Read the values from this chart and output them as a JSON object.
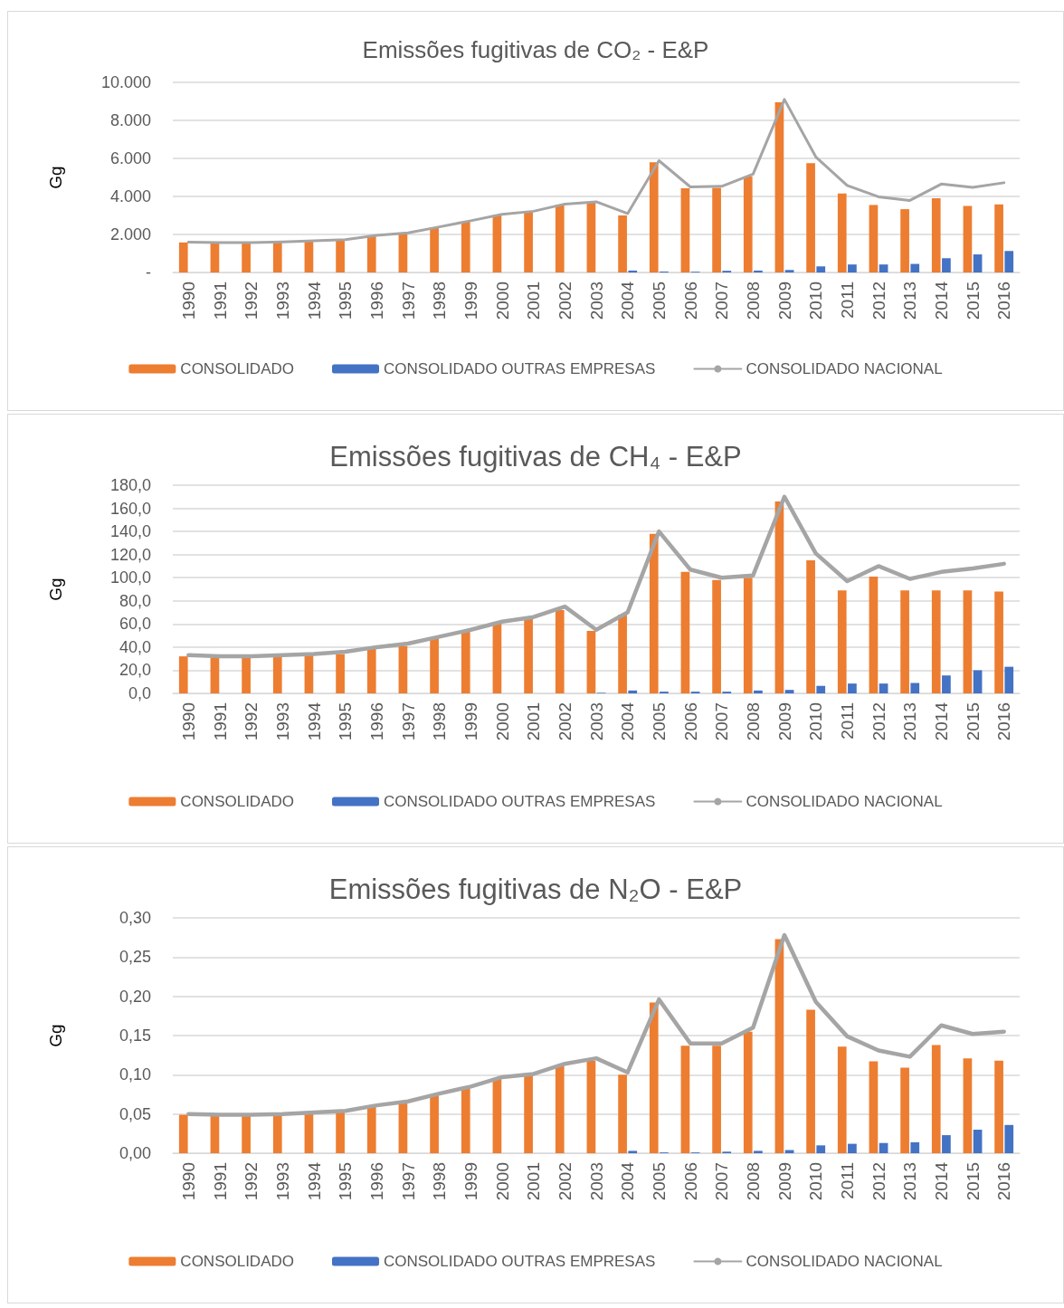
{
  "chart_data": [
    {
      "type": "bar",
      "title": "Emissões fugitivas de CO₂ - E&P",
      "ylabel": "Gg",
      "categories": [
        "1990",
        "1991",
        "1992",
        "1993",
        "1994",
        "1995",
        "1996",
        "1997",
        "1998",
        "1999",
        "2000",
        "2001",
        "2002",
        "2003",
        "2004",
        "2005",
        "2006",
        "2007",
        "2008",
        "2009",
        "2010",
        "2011",
        "2012",
        "2013",
        "2014",
        "2015",
        "2016"
      ],
      "series": [
        {
          "name": "CONSOLIDADO",
          "color": "#ed7d31",
          "values": [
            1580,
            1540,
            1540,
            1580,
            1640,
            1700,
            1920,
            2060,
            2380,
            2680,
            3020,
            3180,
            3560,
            3680,
            3000,
            5800,
            4430,
            4450,
            5050,
            8950,
            5750,
            4150,
            3550,
            3330,
            3900,
            3500,
            3580
          ]
        },
        {
          "name": "CONSOLIDADO OUTRAS EMPRESAS",
          "color": "#4472c4",
          "values": [
            0,
            0,
            0,
            0,
            0,
            0,
            0,
            0,
            0,
            0,
            0,
            0,
            0,
            0,
            100,
            50,
            40,
            90,
            100,
            130,
            320,
            420,
            420,
            450,
            750,
            950,
            1130
          ]
        },
        {
          "name": "CONSOLIDADO NACIONAL",
          "color": "#a5a5a5",
          "type": "line",
          "values": [
            1600,
            1570,
            1570,
            1610,
            1670,
            1730,
            1950,
            2080,
            2400,
            2720,
            3060,
            3220,
            3600,
            3720,
            3100,
            5880,
            4500,
            4530,
            5170,
            9100,
            6080,
            4580,
            3980,
            3790,
            4650,
            4480,
            4720
          ]
        }
      ],
      "ylim": [
        0,
        10000
      ],
      "yticks": [
        {
          "value": 0,
          "label": "-"
        },
        {
          "value": 2000,
          "label": "2.000"
        },
        {
          "value": 4000,
          "label": "4.000"
        },
        {
          "value": 6000,
          "label": "6.000"
        },
        {
          "value": 8000,
          "label": "8.000"
        },
        {
          "value": 10000,
          "label": "10.000"
        }
      ],
      "grid": "y",
      "legend": "bottom",
      "marker": "none",
      "line_style": "solid"
    },
    {
      "type": "bar",
      "title": "Emissões fugitivas de CH₄ - E&P",
      "ylabel": "Gg",
      "categories": [
        "1990",
        "1991",
        "1992",
        "1993",
        "1994",
        "1995",
        "1996",
        "1997",
        "1998",
        "1999",
        "2000",
        "2001",
        "2002",
        "2003",
        "2004",
        "2005",
        "2006",
        "2007",
        "2008",
        "2009",
        "2010",
        "2011",
        "2012",
        "2013",
        "2014",
        "2015",
        "2016"
      ],
      "series": [
        {
          "name": "CONSOLIDADO",
          "color": "#ed7d31",
          "values": [
            32,
            31,
            31,
            32,
            33,
            34,
            39,
            41,
            48,
            54,
            61,
            65,
            72,
            54,
            68,
            138,
            105,
            98,
            100,
            166,
            115,
            89,
            101,
            89,
            89,
            89,
            88
          ]
        },
        {
          "name": "CONSOLIDADO OUTRAS EMPRESAS",
          "color": "#4472c4",
          "values": [
            0,
            0,
            0,
            0,
            0,
            0,
            0,
            0,
            0,
            0,
            0,
            0,
            0,
            0.5,
            2.5,
            1.5,
            1.5,
            1.5,
            2.5,
            3,
            6.5,
            8.5,
            8.5,
            9,
            15.5,
            20,
            23
          ]
        },
        {
          "name": "CONSOLIDADO NACIONAL",
          "color": "#a5a5a5",
          "type": "line",
          "values": [
            33,
            32,
            32,
            33,
            34,
            36,
            40,
            43,
            49,
            55,
            62,
            66,
            75,
            55,
            70,
            140,
            107,
            100,
            102,
            170,
            121,
            97,
            110,
            99,
            105,
            108,
            112
          ]
        }
      ],
      "ylim": [
        0,
        180
      ],
      "yticks": [
        {
          "value": 0,
          "label": "0,0"
        },
        {
          "value": 20,
          "label": "20,0"
        },
        {
          "value": 40,
          "label": "40,0"
        },
        {
          "value": 60,
          "label": "60,0"
        },
        {
          "value": 80,
          "label": "80,0"
        },
        {
          "value": 100,
          "label": "100,0"
        },
        {
          "value": 120,
          "label": "120,0"
        },
        {
          "value": 140,
          "label": "140,0"
        },
        {
          "value": 160,
          "label": "160,0"
        },
        {
          "value": 180,
          "label": "180,0"
        }
      ],
      "grid": "y",
      "legend": "bottom",
      "marker": "none",
      "line_style": "solid"
    },
    {
      "type": "bar",
      "title": "Emissões fugitivas de N₂O - E&P",
      "ylabel": "Gg",
      "categories": [
        "1990",
        "1991",
        "1992",
        "1993",
        "1994",
        "1995",
        "1996",
        "1997",
        "1998",
        "1999",
        "2000",
        "2001",
        "2002",
        "2003",
        "2004",
        "2005",
        "2006",
        "2007",
        "2008",
        "2009",
        "2010",
        "2011",
        "2012",
        "2013",
        "2014",
        "2015",
        "2016"
      ],
      "series": [
        {
          "name": "CONSOLIDADO",
          "color": "#ed7d31",
          "values": [
            0.049,
            0.048,
            0.048,
            0.049,
            0.051,
            0.053,
            0.06,
            0.065,
            0.075,
            0.083,
            0.096,
            0.1,
            0.112,
            0.118,
            0.1,
            0.192,
            0.137,
            0.137,
            0.155,
            0.273,
            0.183,
            0.136,
            0.117,
            0.109,
            0.138,
            0.121,
            0.118
          ]
        },
        {
          "name": "CONSOLIDADO OUTRAS EMPRESAS",
          "color": "#4472c4",
          "values": [
            0,
            0,
            0,
            0,
            0,
            0,
            0,
            0,
            0,
            0,
            0,
            0,
            0,
            0,
            0.003,
            0.001,
            0.001,
            0.002,
            0.003,
            0.004,
            0.01,
            0.012,
            0.013,
            0.014,
            0.023,
            0.03,
            0.036
          ]
        },
        {
          "name": "CONSOLIDADO NACIONAL",
          "color": "#a5a5a5",
          "type": "line",
          "values": [
            0.05,
            0.049,
            0.049,
            0.05,
            0.052,
            0.054,
            0.061,
            0.066,
            0.076,
            0.085,
            0.097,
            0.101,
            0.114,
            0.121,
            0.103,
            0.196,
            0.14,
            0.14,
            0.16,
            0.278,
            0.193,
            0.149,
            0.131,
            0.123,
            0.163,
            0.152,
            0.155
          ]
        }
      ],
      "ylim": [
        0,
        0.3
      ],
      "yticks": [
        {
          "value": 0,
          "label": "0,00"
        },
        {
          "value": 0.05,
          "label": "0,05"
        },
        {
          "value": 0.1,
          "label": "0,10"
        },
        {
          "value": 0.15,
          "label": "0,15"
        },
        {
          "value": 0.2,
          "label": "0,20"
        },
        {
          "value": 0.25,
          "label": "0,25"
        },
        {
          "value": 0.3,
          "label": "0,30"
        }
      ],
      "grid": "y",
      "legend": "bottom",
      "marker": "none",
      "line_style": "solid"
    }
  ]
}
